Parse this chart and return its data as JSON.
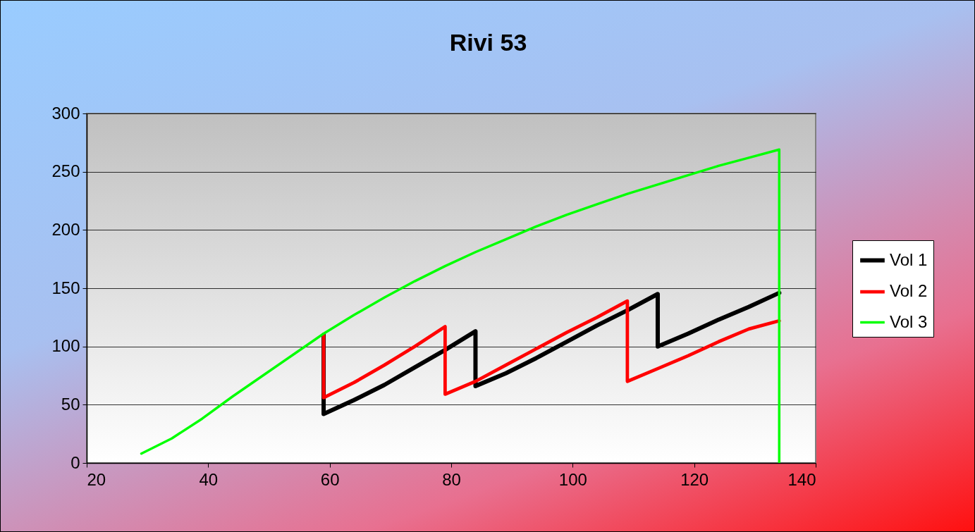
{
  "chart_data": {
    "type": "line",
    "title": "Rivi 53",
    "legend": "right",
    "grid": "y",
    "xlim": [
      20,
      140
    ],
    "xticks": [
      20,
      40,
      60,
      80,
      100,
      120,
      140
    ],
    "ylim": [
      0,
      300
    ],
    "yticks": [
      0,
      50,
      100,
      150,
      200,
      250,
      300
    ],
    "series": [
      {
        "name": "Vol 1",
        "color": "#000000",
        "x": [
          59,
          59,
          64,
          69,
          74,
          79,
          84,
          84,
          89,
          94,
          99,
          104,
          109,
          114,
          114,
          119,
          124,
          129,
          134
        ],
        "values": [
          110,
          42,
          54,
          67,
          82,
          97,
          113,
          66,
          77,
          90,
          104,
          118,
          131,
          145,
          100,
          111,
          123,
          134,
          146
        ]
      },
      {
        "name": "Vol 2",
        "color": "#ff0000",
        "x": [
          59,
          59,
          64,
          69,
          74,
          79,
          79,
          84,
          89,
          94,
          99,
          104,
          109,
          109,
          114,
          119,
          124,
          129,
          134
        ],
        "values": [
          110,
          56,
          69,
          84,
          100,
          117,
          59,
          70,
          84,
          98,
          112,
          125,
          139,
          70,
          81,
          92,
          104,
          115,
          122
        ]
      },
      {
        "name": "Vol 3",
        "color": "#00ff00",
        "x": [
          29,
          34,
          39,
          44,
          49,
          54,
          59,
          64,
          69,
          74,
          79,
          84,
          89,
          94,
          99,
          104,
          109,
          114,
          119,
          124,
          129,
          134,
          134
        ],
        "values": [
          8,
          21,
          38,
          57,
          75,
          93,
          111,
          127,
          142,
          156,
          169,
          181,
          192,
          203,
          213,
          222,
          231,
          239,
          247,
          255,
          262,
          269,
          0
        ]
      }
    ]
  }
}
